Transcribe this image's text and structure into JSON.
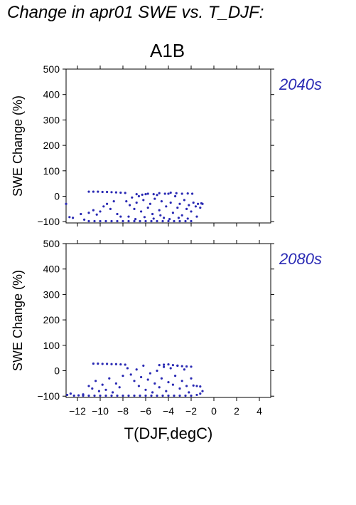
{
  "figure": {
    "title": "Change in apr01 SWE vs. T_DJF:",
    "scenario": "A1B",
    "xlabel": "T(DJF,degC)",
    "point_color": "#2a2ab4"
  },
  "chart_data": [
    {
      "type": "scatter",
      "period": "2040s",
      "ylabel": "SWE Change (%)",
      "xlim": [
        -13,
        5
      ],
      "ylim": [
        -105,
        500
      ],
      "xticks": [
        -12,
        -10,
        -8,
        -6,
        -4,
        -2,
        0,
        2,
        4
      ],
      "yticks": [
        -100,
        0,
        100,
        200,
        300,
        400,
        500
      ],
      "show_x_tick_labels": false,
      "series": [
        {
          "points": [
            [
              -13.0,
              -30
            ],
            [
              -12.7,
              -82
            ],
            [
              -12.4,
              -85
            ],
            [
              -11.7,
              -70
            ],
            [
              -11.4,
              -92
            ],
            [
              -11.0,
              18
            ],
            [
              -10.6,
              18
            ],
            [
              -10.2,
              18
            ],
            [
              -9.8,
              17
            ],
            [
              -9.4,
              17
            ],
            [
              -9.0,
              16
            ],
            [
              -8.6,
              15
            ],
            [
              -8.2,
              14
            ],
            [
              -7.8,
              13
            ],
            [
              -11.0,
              -65
            ],
            [
              -10.6,
              -55
            ],
            [
              -10.3,
              -72
            ],
            [
              -10.0,
              -60
            ],
            [
              -9.7,
              -40
            ],
            [
              -9.4,
              -30
            ],
            [
              -9.1,
              -50
            ],
            [
              -8.8,
              -20
            ],
            [
              -8.5,
              -70
            ],
            [
              -8.2,
              -80
            ],
            [
              -11.0,
              -98
            ],
            [
              -10.5,
              -98
            ],
            [
              -10.0,
              -98
            ],
            [
              -9.5,
              -98
            ],
            [
              -9.0,
              -98
            ],
            [
              -8.5,
              -98
            ],
            [
              -8.0,
              -98
            ],
            [
              -7.5,
              -98
            ],
            [
              -7.0,
              -98
            ],
            [
              -6.5,
              -98
            ],
            [
              -6.0,
              -98
            ],
            [
              -5.5,
              -98
            ],
            [
              -5.0,
              -98
            ],
            [
              -4.5,
              -98
            ],
            [
              -4.0,
              -98
            ],
            [
              -3.5,
              -98
            ],
            [
              -3.0,
              -98
            ],
            [
              -2.5,
              -98
            ],
            [
              -2.0,
              -98
            ],
            [
              -7.7,
              -20
            ],
            [
              -7.4,
              -35
            ],
            [
              -7.2,
              -5
            ],
            [
              -7.0,
              -50
            ],
            [
              -6.8,
              -25
            ],
            [
              -6.6,
              0
            ],
            [
              -6.4,
              -60
            ],
            [
              -6.2,
              -15
            ],
            [
              -6.0,
              8
            ],
            [
              -5.8,
              -45
            ],
            [
              -5.6,
              -30
            ],
            [
              -5.4,
              -70
            ],
            [
              -5.2,
              -10
            ],
            [
              -5.0,
              5
            ],
            [
              -4.8,
              -55
            ],
            [
              -4.6,
              -20
            ],
            [
              -4.4,
              -85
            ],
            [
              -4.2,
              -40
            ],
            [
              -4.0,
              10
            ],
            [
              -3.8,
              -25
            ],
            [
              -3.6,
              -65
            ],
            [
              -3.4,
              0
            ],
            [
              -3.2,
              -45
            ],
            [
              -3.0,
              -30
            ],
            [
              -2.8,
              -75
            ],
            [
              -2.6,
              -15
            ],
            [
              -2.4,
              -50
            ],
            [
              -2.2,
              -35
            ],
            [
              -2.0,
              -60
            ],
            [
              -1.8,
              -25
            ],
            [
              -1.6,
              -40
            ],
            [
              -1.4,
              -30
            ],
            [
              -1.2,
              -45
            ],
            [
              -1.0,
              -30
            ],
            [
              -6.8,
              8
            ],
            [
              -6.3,
              6
            ],
            [
              -5.8,
              10
            ],
            [
              -5.3,
              8
            ],
            [
              -4.8,
              12
            ],
            [
              -4.3,
              10
            ],
            [
              -3.8,
              14
            ],
            [
              -3.3,
              12
            ],
            [
              -2.8,
              10
            ],
            [
              -2.3,
              11
            ],
            [
              -1.9,
              10
            ],
            [
              -7.5,
              -80
            ],
            [
              -6.9,
              -90
            ],
            [
              -6.1,
              -82
            ],
            [
              -5.3,
              -88
            ],
            [
              -4.7,
              -75
            ],
            [
              -3.9,
              -90
            ],
            [
              -3.1,
              -85
            ],
            [
              -2.3,
              -88
            ],
            [
              -1.5,
              -80
            ],
            [
              -1.1,
              -28
            ]
          ]
        }
      ]
    },
    {
      "type": "scatter",
      "period": "2080s",
      "ylabel": "SWE Change (%)",
      "xlim": [
        -13,
        5
      ],
      "ylim": [
        -105,
        500
      ],
      "xticks": [
        -12,
        -10,
        -8,
        -6,
        -4,
        -2,
        0,
        2,
        4
      ],
      "yticks": [
        -100,
        0,
        100,
        200,
        300,
        400,
        500
      ],
      "show_x_tick_labels": true,
      "xticklabels": [
        "−12",
        "−10",
        "−8",
        "−6",
        "−4",
        "−2",
        "0",
        "2",
        "4"
      ],
      "series": [
        {
          "points": [
            [
              -12.9,
              -95
            ],
            [
              -12.6,
              -90
            ],
            [
              -12.3,
              -98
            ],
            [
              -11.9,
              -97
            ],
            [
              -11.5,
              -93
            ],
            [
              -10.6,
              28
            ],
            [
              -10.2,
              28
            ],
            [
              -9.8,
              27
            ],
            [
              -9.4,
              27
            ],
            [
              -9.0,
              26
            ],
            [
              -8.6,
              26
            ],
            [
              -8.2,
              25
            ],
            [
              -7.8,
              24
            ],
            [
              -11.0,
              -60
            ],
            [
              -10.7,
              -70
            ],
            [
              -10.4,
              -40
            ],
            [
              -10.1,
              -80
            ],
            [
              -9.8,
              -55
            ],
            [
              -9.5,
              -75
            ],
            [
              -9.2,
              -30
            ],
            [
              -8.9,
              -85
            ],
            [
              -8.6,
              -50
            ],
            [
              -8.3,
              -65
            ],
            [
              -8.0,
              -20
            ],
            [
              -11.5,
              -98
            ],
            [
              -11.0,
              -98
            ],
            [
              -10.5,
              -98
            ],
            [
              -10.0,
              -98
            ],
            [
              -9.5,
              -98
            ],
            [
              -9.0,
              -98
            ],
            [
              -8.5,
              -98
            ],
            [
              -8.0,
              -98
            ],
            [
              -7.5,
              -98
            ],
            [
              -7.0,
              -98
            ],
            [
              -6.5,
              -98
            ],
            [
              -6.0,
              -98
            ],
            [
              -5.5,
              -98
            ],
            [
              -5.0,
              -98
            ],
            [
              -4.5,
              -98
            ],
            [
              -4.0,
              -98
            ],
            [
              -3.5,
              -98
            ],
            [
              -3.0,
              -98
            ],
            [
              -2.5,
              -98
            ],
            [
              -2.0,
              -98
            ],
            [
              -1.5,
              -95
            ],
            [
              -1.2,
              -90
            ],
            [
              -7.6,
              10
            ],
            [
              -7.3,
              -15
            ],
            [
              -7.0,
              -40
            ],
            [
              -6.8,
              5
            ],
            [
              -6.6,
              -60
            ],
            [
              -6.4,
              -25
            ],
            [
              -6.2,
              20
            ],
            [
              -6.0,
              -75
            ],
            [
              -5.8,
              -35
            ],
            [
              -5.6,
              -10
            ],
            [
              -5.4,
              -85
            ],
            [
              -5.2,
              -50
            ],
            [
              -5.0,
              0
            ],
            [
              -4.8,
              -65
            ],
            [
              -4.6,
              -30
            ],
            [
              -4.4,
              15
            ],
            [
              -4.2,
              -80
            ],
            [
              -4.0,
              -45
            ],
            [
              -3.8,
              10
            ],
            [
              -3.6,
              -55
            ],
            [
              -3.4,
              -20
            ],
            [
              -3.2,
              20
            ],
            [
              -3.0,
              -70
            ],
            [
              -2.8,
              -40
            ],
            [
              -2.6,
              5
            ],
            [
              -2.4,
              -60
            ],
            [
              -2.2,
              -85
            ],
            [
              -2.0,
              -30
            ],
            [
              -4.8,
              22
            ],
            [
              -4.4,
              24
            ],
            [
              -4.0,
              25
            ],
            [
              -3.6,
              22
            ],
            [
              -3.2,
              20
            ],
            [
              -2.8,
              18
            ],
            [
              -2.4,
              17
            ],
            [
              -2.0,
              16
            ],
            [
              -1.8,
              -58
            ],
            [
              -1.5,
              -60
            ],
            [
              -1.2,
              -62
            ],
            [
              -1.0,
              -80
            ]
          ]
        }
      ]
    }
  ]
}
